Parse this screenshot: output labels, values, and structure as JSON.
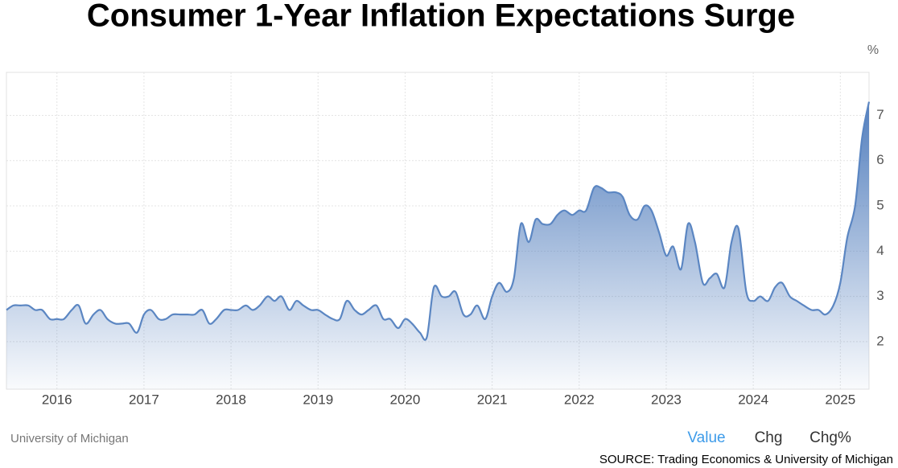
{
  "chart_data": {
    "type": "area",
    "title": "Consumer 1-Year Inflation Expectations Surge",
    "unit": "%",
    "source_name": "University of Michigan",
    "buttons": [
      "Value",
      "Chg",
      "Chg%"
    ],
    "source_note": "SOURCE: Trading Economics & University of Michigan",
    "x": [
      2015.42,
      2015.5,
      2015.58,
      2015.67,
      2015.75,
      2015.83,
      2015.92,
      2016,
      2016.08,
      2016.17,
      2016.25,
      2016.33,
      2016.42,
      2016.5,
      2016.58,
      2016.67,
      2016.75,
      2016.83,
      2016.92,
      2017,
      2017.08,
      2017.17,
      2017.25,
      2017.33,
      2017.42,
      2017.5,
      2017.58,
      2017.67,
      2017.75,
      2017.83,
      2017.92,
      2018,
      2018.08,
      2018.17,
      2018.25,
      2018.33,
      2018.42,
      2018.5,
      2018.58,
      2018.67,
      2018.75,
      2018.83,
      2018.92,
      2019,
      2019.08,
      2019.17,
      2019.25,
      2019.33,
      2019.42,
      2019.5,
      2019.58,
      2019.67,
      2019.75,
      2019.83,
      2019.92,
      2020,
      2020.08,
      2020.17,
      2020.25,
      2020.33,
      2020.42,
      2020.5,
      2020.58,
      2020.67,
      2020.75,
      2020.83,
      2020.92,
      2021,
      2021.08,
      2021.17,
      2021.25,
      2021.33,
      2021.42,
      2021.5,
      2021.58,
      2021.67,
      2021.75,
      2021.83,
      2021.92,
      2022,
      2022.08,
      2022.17,
      2022.25,
      2022.33,
      2022.42,
      2022.5,
      2022.58,
      2022.67,
      2022.75,
      2022.83,
      2022.92,
      2023,
      2023.08,
      2023.17,
      2023.25,
      2023.33,
      2023.42,
      2023.5,
      2023.58,
      2023.67,
      2023.75,
      2023.83,
      2023.92,
      2024,
      2024.08,
      2024.17,
      2024.25,
      2024.33,
      2024.42,
      2024.5,
      2024.58,
      2024.67,
      2024.75,
      2024.83,
      2024.92,
      2025,
      2025.08,
      2025.17,
      2025.25,
      2025.33
    ],
    "series": [
      {
        "color": "#5b86c2",
        "values": [
          2.7,
          2.8,
          2.8,
          2.8,
          2.7,
          2.7,
          2.5,
          2.5,
          2.5,
          2.7,
          2.8,
          2.4,
          2.6,
          2.7,
          2.5,
          2.4,
          2.4,
          2.4,
          2.2,
          2.6,
          2.7,
          2.5,
          2.5,
          2.6,
          2.6,
          2.6,
          2.6,
          2.7,
          2.4,
          2.5,
          2.7,
          2.7,
          2.7,
          2.8,
          2.7,
          2.8,
          3.0,
          2.9,
          3.0,
          2.7,
          2.9,
          2.8,
          2.7,
          2.7,
          2.6,
          2.5,
          2.5,
          2.9,
          2.7,
          2.6,
          2.7,
          2.8,
          2.5,
          2.5,
          2.3,
          2.5,
          2.4,
          2.2,
          2.1,
          3.2,
          3.0,
          3.0,
          3.1,
          2.6,
          2.6,
          2.8,
          2.5,
          3.0,
          3.3,
          3.1,
          3.4,
          4.6,
          4.2,
          4.7,
          4.6,
          4.6,
          4.8,
          4.9,
          4.8,
          4.9,
          4.9,
          5.4,
          5.4,
          5.3,
          5.3,
          5.2,
          4.8,
          4.7,
          5.0,
          4.9,
          4.4,
          3.9,
          4.1,
          3.6,
          4.6,
          4.2,
          3.3,
          3.4,
          3.5,
          3.2,
          4.2,
          4.5,
          3.1,
          2.9,
          3.0,
          2.9,
          3.2,
          3.3,
          3.0,
          2.9,
          2.8,
          2.7,
          2.7,
          2.6,
          2.8,
          3.3,
          4.3,
          5.0,
          6.5,
          7.3
        ]
      }
    ],
    "xlim": [
      2015.42,
      2025.33
    ],
    "xticks": [
      2016,
      2017,
      2018,
      2019,
      2020,
      2021,
      2022,
      2023,
      2024,
      2025
    ],
    "ylim": [
      0.95,
      7.95
    ],
    "yticks": [
      2,
      3,
      4,
      5,
      6,
      7
    ],
    "grid": true
  }
}
